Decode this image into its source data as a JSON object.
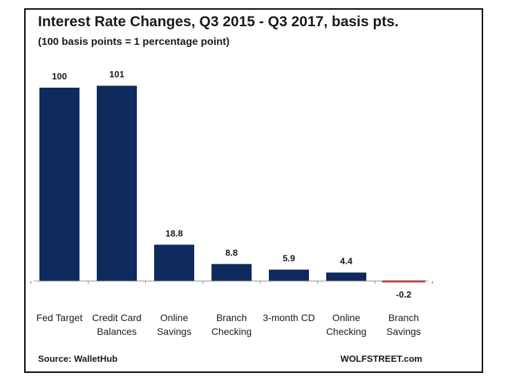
{
  "chart_data": {
    "type": "bar",
    "title": "Interest Rate Changes, Q3 2015 - Q3 2017, basis pts.",
    "subtitle": "(100 basis points = 1 percentage point)",
    "categories": [
      [
        "Fed Target"
      ],
      [
        "Credit Card",
        "Balances"
      ],
      [
        "Online",
        "Savings"
      ],
      [
        "Branch",
        "Checking"
      ],
      [
        "3-month CD"
      ],
      [
        "Online",
        "Checking"
      ],
      [
        "Branch",
        "Savings"
      ]
    ],
    "values": [
      100,
      101,
      18.8,
      8.8,
      5.9,
      4.4,
      -0.2
    ],
    "value_labels": [
      "100",
      "101",
      "18.8",
      "8.8",
      "5.9",
      "4.4",
      "-0.2"
    ],
    "ylim": [
      -0.2,
      101
    ],
    "grid": false,
    "legend": "none",
    "colors": {
      "positive": "#0f2a5c",
      "negative": "#d9262b",
      "axis": "#888888"
    }
  },
  "footer": {
    "source": "Source: WalletHub",
    "credit": "WOLFSTREET.com"
  }
}
